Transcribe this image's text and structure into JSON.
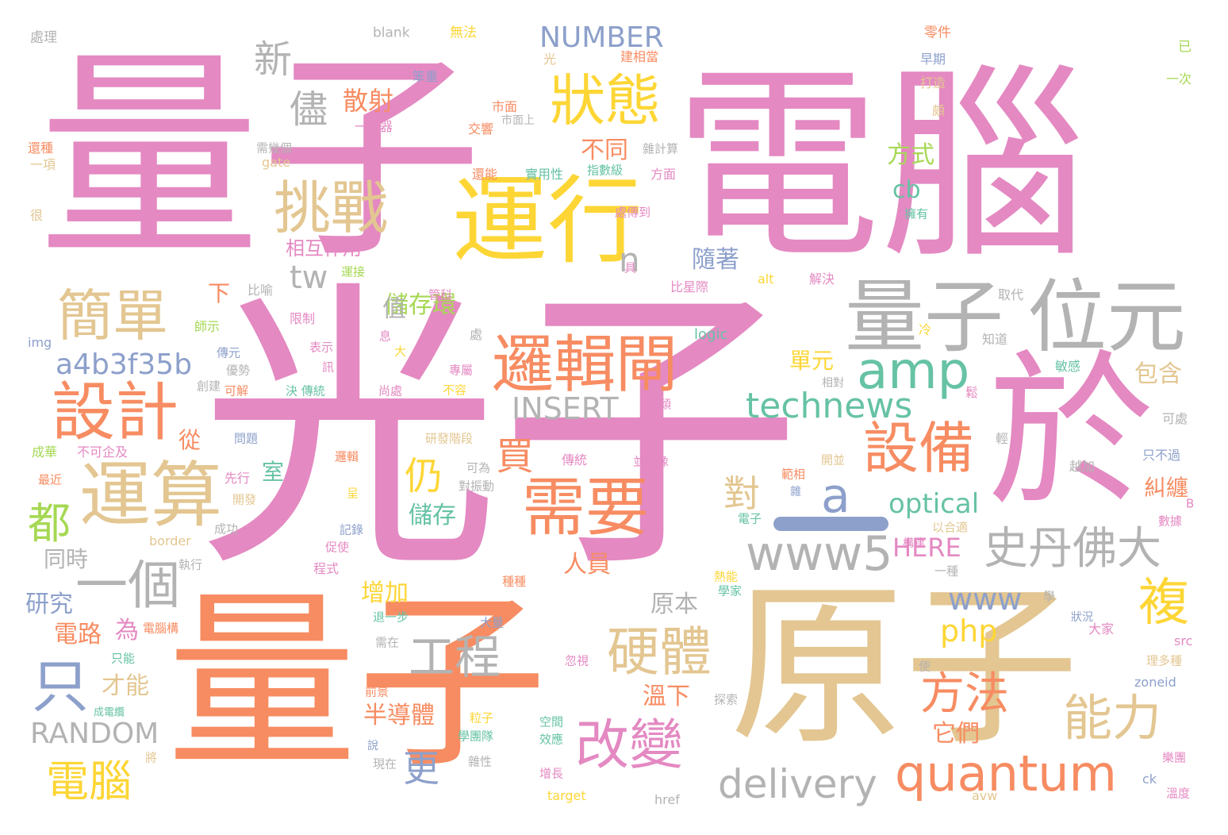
{
  "palette": {
    "pink": "#e489c2",
    "orange": "#f78c62",
    "tan": "#e3c691",
    "grey": "#b3b3b3",
    "yellow": "#fdd636",
    "green": "#66c2a5",
    "blue": "#8da0cb",
    "lime": "#a6d854"
  },
  "words": [
    {
      "text": "光子",
      "color": "#e489c2"
    },
    {
      "text": "量子",
      "color": "#e489c2"
    },
    {
      "text": "電腦",
      "color": "#e489c2"
    },
    {
      "text": "量子",
      "color": "#f78c62"
    },
    {
      "text": "原子",
      "color": "#e3c691"
    },
    {
      "text": "於",
      "color": "#e489c2"
    },
    {
      "text": "運行",
      "color": "#fdd636"
    },
    {
      "text": "量子",
      "color": "#b3b3b3"
    },
    {
      "text": "位元",
      "color": "#b3b3b3"
    },
    {
      "text": "邏輯閘",
      "color": "#f78c62"
    },
    {
      "text": "運算",
      "color": "#e3c691"
    },
    {
      "text": "設計",
      "color": "#f78c62"
    },
    {
      "text": "需要",
      "color": "#f78c62"
    },
    {
      "text": "挑戰",
      "color": "#e3c691"
    },
    {
      "text": "簡單",
      "color": "#e3c691"
    },
    {
      "text": "狀態",
      "color": "#fdd636"
    },
    {
      "text": "設備",
      "color": "#f78c62"
    },
    {
      "text": "amp",
      "color": "#66c2a5"
    },
    {
      "text": "quantum",
      "color": "#f78c62"
    },
    {
      "text": "改變",
      "color": "#e489c2"
    },
    {
      "text": "硬體",
      "color": "#e3c691"
    },
    {
      "text": "史丹佛大",
      "color": "#b3b3b3"
    },
    {
      "text": "www5",
      "color": "#b3b3b3"
    },
    {
      "text": "一個",
      "color": "#b3b3b3"
    },
    {
      "text": "只",
      "color": "#8da0cb"
    },
    {
      "text": "複",
      "color": "#fdd636"
    },
    {
      "text": "能力",
      "color": "#e3c691"
    },
    {
      "text": "technews",
      "color": "#66c2a5"
    },
    {
      "text": "工程",
      "color": "#b3b3b3"
    },
    {
      "text": "方法",
      "color": "#f78c62"
    },
    {
      "text": "電腦",
      "color": "#fdd636"
    },
    {
      "text": "delivery",
      "color": "#b3b3b3"
    },
    {
      "text": "a",
      "color": "#8da0cb"
    },
    {
      "text": "a4b3f35b",
      "color": "#8da0cb"
    },
    {
      "text": "INSERT",
      "color": "#b3b3b3"
    },
    {
      "text": "RANDOM",
      "color": "#b3b3b3"
    },
    {
      "text": "NUMBER",
      "color": "#8da0cb"
    },
    {
      "text": "新",
      "color": "#b3b3b3"
    },
    {
      "text": "儘",
      "color": "#b3b3b3"
    },
    {
      "text": "都",
      "color": "#a6d854"
    },
    {
      "text": "仍",
      "color": "#fdd636"
    },
    {
      "text": "買",
      "color": "#f78c62"
    },
    {
      "text": "對",
      "color": "#e3c691"
    },
    {
      "text": "更",
      "color": "#8da0cb"
    },
    {
      "text": "n",
      "color": "#b3b3b3"
    },
    {
      "text": "tw",
      "color": "#b3b3b3"
    },
    {
      "text": "www",
      "color": "#8da0cb"
    },
    {
      "text": "php",
      "color": "#fdd636"
    },
    {
      "text": "optical",
      "color": "#66c2a5"
    },
    {
      "text": "HERE",
      "color": "#e489c2"
    },
    {
      "text": "cb",
      "color": "#66c2a5"
    },
    {
      "text": "散射",
      "color": "#f78c62"
    },
    {
      "text": "不同",
      "color": "#f78c62"
    },
    {
      "text": "方式",
      "color": "#a6d854"
    },
    {
      "text": "隨著",
      "color": "#8da0cb"
    },
    {
      "text": "單元",
      "color": "#fdd636"
    },
    {
      "text": "包含",
      "color": "#e3c691"
    },
    {
      "text": "糾纏",
      "color": "#f78c62"
    },
    {
      "text": "儲存環",
      "color": "#a6d854"
    },
    {
      "text": "相互作用",
      "color": "#e489c2"
    },
    {
      "text": "儲存",
      "color": "#66c2a5"
    },
    {
      "text": "人員",
      "color": "#f78c62"
    },
    {
      "text": "增加",
      "color": "#fdd636"
    },
    {
      "text": "原本",
      "color": "#b3b3b3"
    },
    {
      "text": "溫下",
      "color": "#f78c62"
    },
    {
      "text": "半導體",
      "color": "#f78c62"
    },
    {
      "text": "它們",
      "color": "#f78c62"
    },
    {
      "text": "才能",
      "color": "#e3c691"
    },
    {
      "text": "電路",
      "color": "#f78c62"
    },
    {
      "text": "為",
      "color": "#e489c2"
    },
    {
      "text": "研究",
      "color": "#8da0cb"
    },
    {
      "text": "同時",
      "color": "#b3b3b3"
    },
    {
      "text": "從",
      "color": "#f78c62"
    },
    {
      "text": "室",
      "color": "#66c2a5"
    },
    {
      "text": "值",
      "color": "#b3b3b3"
    },
    {
      "text": "下",
      "color": "#f78c62"
    },
    {
      "text": "處理",
      "color": "#b3b3b3"
    },
    {
      "text": "blank",
      "color": "#b3b3b3"
    },
    {
      "text": "無法",
      "color": "#fdd636"
    },
    {
      "text": "零件",
      "color": "#f78c62"
    },
    {
      "text": "已",
      "color": "#a6d854"
    },
    {
      "text": "光",
      "color": "#e3c691"
    },
    {
      "text": "早期",
      "color": "#8da0cb"
    },
    {
      "text": "笨重",
      "color": "#8da0cb"
    },
    {
      "text": "建相當",
      "color": "#f78c62"
    },
    {
      "text": "打造",
      "color": "#e3c691"
    },
    {
      "text": "一次",
      "color": "#a6d854"
    },
    {
      "text": "市面",
      "color": "#f78c62"
    },
    {
      "text": "市面上",
      "color": "#b3b3b3"
    },
    {
      "text": "頗",
      "color": "#e3c691"
    },
    {
      "text": "一樂器",
      "color": "#e489c2"
    },
    {
      "text": "交響",
      "color": "#f78c62"
    },
    {
      "text": "還種",
      "color": "#f78c62"
    },
    {
      "text": "一項",
      "color": "#e3c691"
    },
    {
      "text": "gate",
      "color": "#e3c691"
    },
    {
      "text": "需幾個",
      "color": "#b3b3b3"
    },
    {
      "text": "雜計算",
      "color": "#b3b3b3"
    },
    {
      "text": "還能",
      "color": "#f78c62"
    },
    {
      "text": "實用性",
      "color": "#66c2a5"
    },
    {
      "text": "指數級",
      "color": "#66c2a5"
    },
    {
      "text": "方面",
      "color": "#e489c2"
    },
    {
      "text": "很",
      "color": "#e3c691"
    },
    {
      "text": "處傳到",
      "color": "#e489c2"
    },
    {
      "text": "擁有",
      "color": "#66c2a5"
    },
    {
      "text": "具",
      "color": "#e489c2"
    },
    {
      "text": "運接",
      "color": "#a6d854"
    },
    {
      "text": "比喻",
      "color": "#b3b3b3"
    },
    {
      "text": "alt",
      "color": "#fdd636"
    },
    {
      "text": "解決",
      "color": "#e489c2"
    },
    {
      "text": "取代",
      "color": "#b3b3b3"
    },
    {
      "text": "比星際",
      "color": "#e489c2"
    },
    {
      "text": "管科",
      "color": "#e489c2"
    },
    {
      "text": "限制",
      "color": "#e489c2"
    },
    {
      "text": "師示",
      "color": "#a6d854"
    },
    {
      "text": "logic",
      "color": "#66c2a5"
    },
    {
      "text": "冷",
      "color": "#fdd636"
    },
    {
      "text": "知道",
      "color": "#b3b3b3"
    },
    {
      "text": "img",
      "color": "#8da0cb"
    },
    {
      "text": "息",
      "color": "#e489c2"
    },
    {
      "text": "處",
      "color": "#b3b3b3"
    },
    {
      "text": "表示",
      "color": "#e489c2"
    },
    {
      "text": "傳元",
      "color": "#8da0cb"
    },
    {
      "text": "大",
      "color": "#fdd636"
    },
    {
      "text": "訊",
      "color": "#e489c2"
    },
    {
      "text": "優勢",
      "color": "#b3b3b3"
    },
    {
      "text": "專屬",
      "color": "#e489c2"
    },
    {
      "text": "敏感",
      "color": "#66c2a5"
    },
    {
      "text": "創建",
      "color": "#b3b3b3"
    },
    {
      "text": "可解",
      "color": "#f78c62"
    },
    {
      "text": "決 傳統",
      "color": "#66c2a5"
    },
    {
      "text": "尚處",
      "color": "#e489c2"
    },
    {
      "text": "不容",
      "color": "#fdd636"
    },
    {
      "text": "相對",
      "color": "#b3b3b3"
    },
    {
      "text": "新穎",
      "color": "#e489c2"
    },
    {
      "text": "鬆",
      "color": "#e489c2"
    },
    {
      "text": "可處",
      "color": "#b3b3b3"
    },
    {
      "text": "問題",
      "color": "#8da0cb"
    },
    {
      "text": "研發階段",
      "color": "#e3c691"
    },
    {
      "text": "輕",
      "color": "#b3b3b3"
    },
    {
      "text": "成華",
      "color": "#a6d854"
    },
    {
      "text": "不可企及",
      "color": "#e489c2"
    },
    {
      "text": "邏輯",
      "color": "#f78c62"
    },
    {
      "text": "傳統",
      "color": "#e489c2"
    },
    {
      "text": "並不像",
      "color": "#e489c2"
    },
    {
      "text": "越加",
      "color": "#b3b3b3"
    },
    {
      "text": "只不過",
      "color": "#8da0cb"
    },
    {
      "text": "最近",
      "color": "#f78c62"
    },
    {
      "text": "先行",
      "color": "#e489c2"
    },
    {
      "text": "可為",
      "color": "#b3b3b3"
    },
    {
      "text": "對振動",
      "color": "#b3b3b3"
    },
    {
      "text": "範相",
      "color": "#f78c62"
    },
    {
      "text": "開並",
      "color": "#e3c691"
    },
    {
      "text": "開發",
      "color": "#e3c691"
    },
    {
      "text": "呈",
      "color": "#fdd636"
    },
    {
      "text": "雜",
      "color": "#8da0cb"
    },
    {
      "text": "B",
      "color": "#e489c2"
    },
    {
      "text": "電子",
      "color": "#66c2a5"
    },
    {
      "text": "數據",
      "color": "#e489c2"
    },
    {
      "text": "成功",
      "color": "#b3b3b3"
    },
    {
      "text": "記錄",
      "color": "#8da0cb"
    },
    {
      "text": "以合適",
      "color": "#e3c691"
    },
    {
      "text": "border",
      "color": "#e3c691"
    },
    {
      "text": "促使",
      "color": "#e489c2"
    },
    {
      "text": "執行",
      "color": "#b3b3b3"
    },
    {
      "text": "程式",
      "color": "#e489c2"
    },
    {
      "text": "構建",
      "color": "#e489c2"
    },
    {
      "text": "一種",
      "color": "#b3b3b3"
    },
    {
      "text": "種種",
      "color": "#f78c62"
    },
    {
      "text": "熱能",
      "color": "#fdd636"
    },
    {
      "text": "學家",
      "color": "#66c2a5"
    },
    {
      "text": "學",
      "color": "#b3b3b3"
    },
    {
      "text": "狀況",
      "color": "#8da0cb"
    },
    {
      "text": "大家",
      "color": "#e489c2"
    },
    {
      "text": "電腦構",
      "color": "#f78c62"
    },
    {
      "text": "退一步",
      "color": "#66c2a5"
    },
    {
      "text": "大量",
      "color": "#8da0cb"
    },
    {
      "text": "src",
      "color": "#e489c2"
    },
    {
      "text": "只能",
      "color": "#66c2a5"
    },
    {
      "text": "需在",
      "color": "#b3b3b3"
    },
    {
      "text": "忽視",
      "color": "#e489c2"
    },
    {
      "text": "使",
      "color": "#b3b3b3"
    },
    {
      "text": "理多種",
      "color": "#e3c691"
    },
    {
      "text": "成電纜",
      "color": "#66c2a5"
    },
    {
      "text": "前景",
      "color": "#f78c62"
    },
    {
      "text": "探索",
      "color": "#b3b3b3"
    },
    {
      "text": "zoneid",
      "color": "#8da0cb"
    },
    {
      "text": "粒子",
      "color": "#fdd636"
    },
    {
      "text": "空間",
      "color": "#66c2a5"
    },
    {
      "text": "效應",
      "color": "#66c2a5"
    },
    {
      "text": "將",
      "color": "#e3c691"
    },
    {
      "text": "說",
      "color": "#8da0cb"
    },
    {
      "text": "學團隊",
      "color": "#66c2a5"
    },
    {
      "text": "現在",
      "color": "#b3b3b3"
    },
    {
      "text": "雜性",
      "color": "#b3b3b3"
    },
    {
      "text": "增長",
      "color": "#e489c2"
    },
    {
      "text": "樂團",
      "color": "#e489c2"
    },
    {
      "text": "ck",
      "color": "#8da0cb"
    },
    {
      "text": "溫度",
      "color": "#e489c2"
    },
    {
      "text": "target",
      "color": "#fdd636"
    },
    {
      "text": "href",
      "color": "#b3b3b3"
    },
    {
      "text": "avw",
      "color": "#e3c691"
    },
    {
      "text": "_",
      "color": "#8da0cb"
    }
  ]
}
